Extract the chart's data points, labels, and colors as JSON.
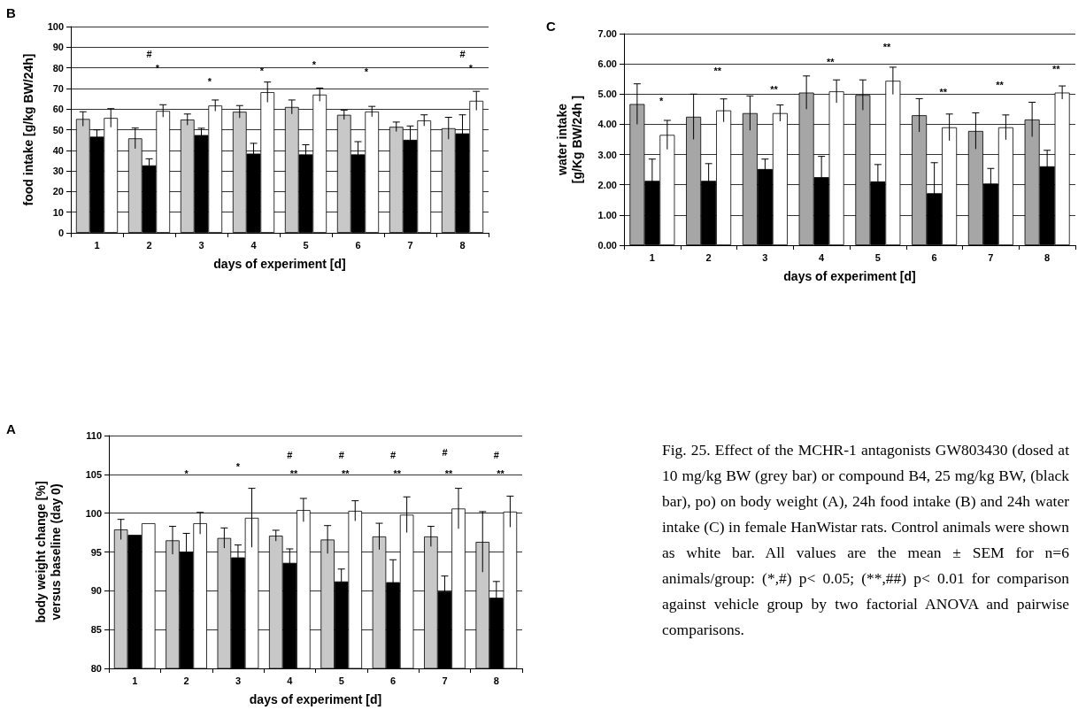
{
  "chart_data": [
    {
      "type": "bar",
      "title": "B",
      "xlabel": "days of experiment [d]",
      "ylabel": "food intake [g/kg BW/24h]",
      "categories": [
        "1",
        "2",
        "3",
        "4",
        "5",
        "6",
        "7",
        "8"
      ],
      "series": [
        {
          "color": "#c8c8c8",
          "values": [
            55.2,
            45.8,
            54.9,
            58.7,
            61,
            57.2,
            51.4,
            50.7
          ],
          "errors": [
            3.5,
            5,
            2.7,
            3,
            3.4,
            2.3,
            2.3,
            5.3
          ]
        },
        {
          "color": "#000000",
          "values": [
            46.6,
            32.7,
            47.4,
            38.4,
            38,
            38,
            45.1,
            48.2
          ],
          "errors": [
            3.3,
            3.2,
            3.3,
            5,
            4.7,
            6.2,
            6.7,
            9
          ]
        },
        {
          "color": "#ffffff",
          "values": [
            55.7,
            59.1,
            61.7,
            68.2,
            67,
            58.8,
            54.5,
            64
          ],
          "errors": [
            4.5,
            3,
            2.7,
            4.9,
            3.2,
            2.5,
            2.7,
            4.6
          ]
        }
      ],
      "ylim": [
        0,
        100
      ],
      "yticks": [
        0,
        10,
        20,
        30,
        40,
        50,
        60,
        70,
        80,
        90,
        100
      ],
      "grid": "y",
      "annotations": [
        "#",
        "*",
        "*",
        "*",
        "*",
        "*",
        "#",
        "*"
      ]
    },
    {
      "type": "bar",
      "title": "C",
      "xlabel": "days of experiment [d]",
      "ylabel": "water intake\n[g/Kg BW/24h ]",
      "categories": [
        "1",
        "2",
        "3",
        "4",
        "5",
        "6",
        "7",
        "8"
      ],
      "series": [
        {
          "color": "#a6a6a6",
          "values": [
            4.67,
            4.25,
            4.37,
            5.05,
            4.97,
            4.3,
            3.78,
            4.16
          ],
          "errors": [
            0.67,
            0.75,
            0.57,
            0.55,
            0.5,
            0.55,
            0.6,
            0.57
          ]
        },
        {
          "color": "#000000",
          "values": [
            2.13,
            2.13,
            2.52,
            2.25,
            2.11,
            1.72,
            2.04,
            2.61
          ],
          "errors": [
            0.72,
            0.57,
            0.33,
            0.69,
            0.56,
            1.01,
            0.5,
            0.53
          ]
        },
        {
          "color": "#ffffff",
          "values": [
            3.65,
            4.46,
            4.37,
            5.09,
            5.44,
            3.9,
            3.9,
            5.05
          ],
          "errors": [
            0.48,
            0.38,
            0.27,
            0.38,
            0.45,
            0.44,
            0.41,
            0.22
          ]
        }
      ],
      "ylim": [
        0,
        7
      ],
      "yticks": [
        {
          "value": 0,
          "label": "0.00"
        },
        {
          "value": 1,
          "label": "1.00"
        },
        {
          "value": 2,
          "label": "2.00"
        },
        {
          "value": 3,
          "label": "3.00"
        },
        {
          "value": 4,
          "label": "4.00"
        },
        {
          "value": 5,
          "label": "5.00"
        },
        {
          "value": 6,
          "label": "6.00"
        },
        {
          "value": 7,
          "label": "7.00"
        }
      ],
      "grid": "y",
      "annotations": [
        "*",
        "**",
        "**",
        "**",
        "**",
        "**",
        "**",
        "**"
      ]
    },
    {
      "type": "bar",
      "title": "A",
      "xlabel": "days of experiment [d]",
      "ylabel": "body weight change [%]\nversus baseline (day 0)",
      "categories": [
        "1",
        "2",
        "3",
        "4",
        "5",
        "6",
        "7",
        "8"
      ],
      "series": [
        {
          "color": "#c8c8c8",
          "values": [
            97.9,
            96.5,
            96.8,
            97.1,
            96.6,
            97.0,
            97.0,
            96.3
          ],
          "errors": [
            1.3,
            1.8,
            1.3,
            0.7,
            1.8,
            1.7,
            1.3,
            3.9
          ]
        },
        {
          "color": "#000000",
          "values": [
            97.2,
            95.0,
            94.3,
            93.6,
            91.2,
            91.1,
            89.9,
            89.1
          ],
          "errors": [
            null,
            2.4,
            1.6,
            1.8,
            1.6,
            2.9,
            2.0,
            2.1
          ]
        },
        {
          "color": "#ffffff",
          "values": [
            98.7,
            98.7,
            99.4,
            100.4,
            100.3,
            99.8,
            100.6,
            100.2
          ],
          "errors": [
            null,
            1.4,
            3.8,
            1.5,
            1.3,
            2.3,
            2.6,
            2.0
          ]
        }
      ],
      "ylim": [
        80,
        110
      ],
      "yticks": [
        80,
        85,
        90,
        95,
        100,
        105,
        110
      ],
      "grid": "y",
      "annotations": [
        "*",
        "*",
        "#",
        "**",
        "#",
        "**",
        "#",
        "**",
        "#",
        "**",
        "#",
        "**"
      ]
    },
    {
      "type": "other",
      "annotations": [
        "Fig. 25. Effect of the MCHR-1 antagonists GW803430 (dosed at 10 mg/kg BW (grey bar) or compound B4, 25 mg/kg BW, (black bar), po) on body weight (A), 24h food intake (B) and 24h water intake (C) in female HanWistar rats. Control animals were shown as white bar. All values are the mean ± SEM for n=6 animals/group: (*,#) p< 0.05; (**,##) p< 0.01 for comparison against vehicle group by two factorial ANOVA and pairwise comparisons."
      ]
    }
  ]
}
